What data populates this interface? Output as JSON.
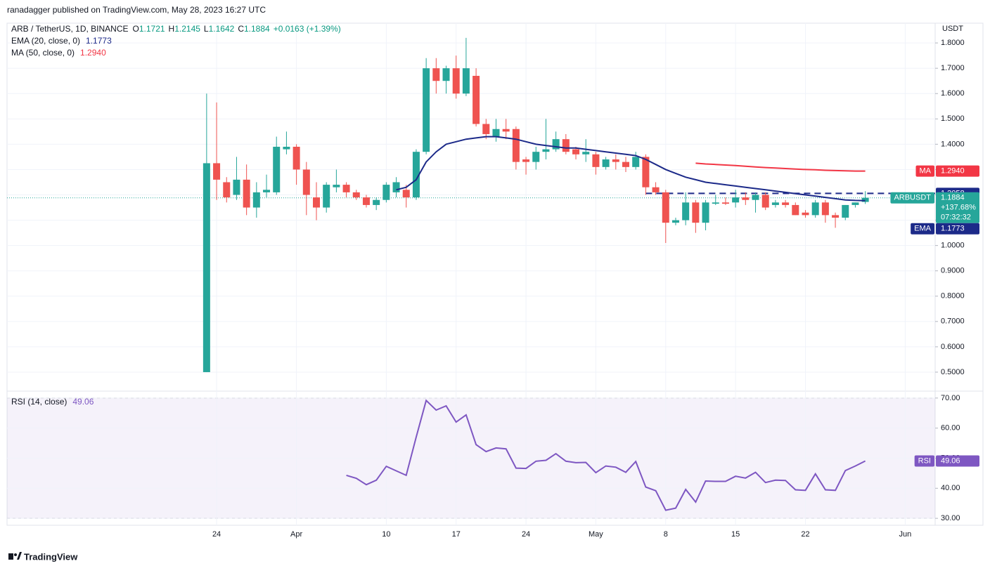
{
  "header": "ranadagger published on TradingView.com, May 28, 2023 16:27 UTC",
  "footer": "TradingView",
  "chart_data": [
    {
      "type": "candlestick",
      "title": "ARB / TetherUS, 1D, BINANCE",
      "ohlc": [
        {
          "key": "O",
          "text": "1.1721"
        },
        {
          "key": "H",
          "text": "1.2145"
        },
        {
          "key": "L",
          "text": "1.1642"
        },
        {
          "key": "C",
          "text": "1.1884"
        }
      ],
      "change": "+0.0163 (+1.39%)",
      "unit": "USDT",
      "categories": [
        "Mar 23",
        "Mar 24",
        "Mar 25",
        "Mar 26",
        "Mar 27",
        "Mar 28",
        "Mar 29",
        "Mar 30",
        "Mar 31",
        "Apr 1",
        "Apr 2",
        "Apr 3",
        "Apr 4",
        "Apr 5",
        "Apr 6",
        "Apr 7",
        "Apr 8",
        "Apr 9",
        "Apr 10",
        "Apr 11",
        "Apr 12",
        "Apr 13",
        "Apr 14",
        "Apr 15",
        "Apr 16",
        "Apr 17",
        "Apr 18",
        "Apr 19",
        "Apr 20",
        "Apr 21",
        "Apr 22",
        "Apr 23",
        "Apr 24",
        "Apr 25",
        "Apr 26",
        "Apr 27",
        "Apr 28",
        "Apr 29",
        "Apr 30",
        "May 1",
        "May 2",
        "May 3",
        "May 4",
        "May 5",
        "May 6",
        "May 7",
        "May 8",
        "May 9",
        "May 10",
        "May 11",
        "May 12",
        "May 13",
        "May 14",
        "May 15",
        "May 16",
        "May 17",
        "May 18",
        "May 19",
        "May 20",
        "May 21",
        "May 22",
        "May 23",
        "May 24",
        "May 25",
        "May 26",
        "May 27",
        "May 28"
      ],
      "series": [
        {
          "name": "ARBUSDT",
          "up_color": "#26a69a",
          "down_color": "#ef5350",
          "open": [
            0.5,
            1.325,
            1.25,
            1.2,
            1.26,
            1.15,
            1.21,
            1.21,
            1.38,
            1.39,
            1.3,
            1.19,
            1.15,
            1.23,
            1.24,
            1.21,
            1.19,
            1.16,
            1.18,
            1.21,
            1.22,
            1.19,
            1.37,
            1.7,
            1.65,
            1.7,
            1.6,
            1.67,
            1.48,
            1.43,
            1.46,
            1.46,
            1.34,
            1.33,
            1.37,
            1.38,
            1.42,
            1.38,
            1.36,
            1.36,
            1.31,
            1.34,
            1.33,
            1.31,
            1.35,
            1.23,
            1.21,
            1.09,
            1.1,
            1.17,
            1.09,
            1.165,
            1.17,
            1.17,
            1.19,
            1.18,
            1.2,
            1.16,
            1.17,
            1.16,
            1.13,
            1.12,
            1.17,
            1.12,
            1.11,
            1.16,
            1.1721
          ],
          "high": [
            1.6,
            1.565,
            1.27,
            1.35,
            1.32,
            1.25,
            1.28,
            1.43,
            1.45,
            1.4,
            1.33,
            1.25,
            1.25,
            1.3,
            1.25,
            1.22,
            1.2,
            1.19,
            1.25,
            1.27,
            1.24,
            1.38,
            1.74,
            1.74,
            1.71,
            1.75,
            1.82,
            1.7,
            1.5,
            1.5,
            1.5,
            1.47,
            1.35,
            1.39,
            1.5,
            1.45,
            1.44,
            1.39,
            1.42,
            1.37,
            1.35,
            1.36,
            1.35,
            1.37,
            1.36,
            1.25,
            1.22,
            1.11,
            1.21,
            1.18,
            1.18,
            1.2,
            1.19,
            1.22,
            1.21,
            1.21,
            1.21,
            1.18,
            1.18,
            1.17,
            1.14,
            1.18,
            1.18,
            1.13,
            1.16,
            1.17,
            1.2145
          ],
          "low": [
            0.5,
            1.18,
            1.17,
            1.18,
            1.12,
            1.11,
            1.19,
            1.2,
            1.36,
            1.24,
            1.12,
            1.1,
            1.13,
            1.21,
            1.19,
            1.18,
            1.15,
            1.14,
            1.17,
            1.19,
            1.15,
            1.18,
            1.36,
            1.6,
            1.6,
            1.58,
            1.59,
            1.47,
            1.42,
            1.41,
            1.42,
            1.3,
            1.28,
            1.3,
            1.34,
            1.37,
            1.36,
            1.34,
            1.33,
            1.28,
            1.3,
            1.3,
            1.29,
            1.3,
            1.2,
            1.2,
            1.01,
            1.08,
            1.08,
            1.05,
            1.06,
            1.16,
            1.16,
            1.15,
            1.16,
            1.13,
            1.14,
            1.15,
            1.15,
            1.12,
            1.11,
            1.11,
            1.09,
            1.07,
            1.1,
            1.15,
            1.1642
          ],
          "close": [
            1.325,
            1.26,
            1.19,
            1.26,
            1.15,
            1.21,
            1.22,
            1.39,
            1.39,
            1.3,
            1.2,
            1.15,
            1.24,
            1.24,
            1.21,
            1.19,
            1.16,
            1.18,
            1.24,
            1.25,
            1.19,
            1.37,
            1.7,
            1.65,
            1.7,
            1.6,
            1.7,
            1.48,
            1.44,
            1.46,
            1.45,
            1.33,
            1.33,
            1.37,
            1.38,
            1.42,
            1.37,
            1.36,
            1.37,
            1.31,
            1.34,
            1.33,
            1.31,
            1.35,
            1.23,
            1.21,
            1.09,
            1.1,
            1.17,
            1.09,
            1.17,
            1.17,
            1.165,
            1.19,
            1.18,
            1.2,
            1.15,
            1.17,
            1.16,
            1.12,
            1.12,
            1.17,
            1.12,
            1.11,
            1.16,
            1.17,
            1.1884
          ]
        },
        {
          "name": "EMA (20, close, 0)",
          "tag": "EMA",
          "color": "#1c2a89",
          "last_label": "1.1773",
          "values": [
            null,
            null,
            null,
            null,
            null,
            null,
            null,
            null,
            null,
            null,
            null,
            null,
            null,
            null,
            null,
            null,
            null,
            null,
            null,
            1.22,
            1.23,
            1.26,
            1.33,
            1.37,
            1.4,
            1.41,
            1.42,
            1.425,
            1.43,
            1.43,
            1.425,
            1.42,
            1.41,
            1.4,
            1.395,
            1.39,
            1.385,
            1.385,
            1.38,
            1.375,
            1.37,
            1.365,
            1.36,
            1.355,
            1.34,
            1.32,
            1.3,
            1.285,
            1.27,
            1.26,
            1.25,
            1.245,
            1.24,
            1.235,
            1.23,
            1.225,
            1.22,
            1.215,
            1.21,
            1.205,
            1.2,
            1.195,
            1.19,
            1.185,
            1.18,
            1.178,
            1.1773
          ]
        },
        {
          "name": "MA (50, close, 0)",
          "tag": "MA",
          "color": "#f23645",
          "last_label": "1.2940",
          "values": [
            null,
            null,
            null,
            null,
            null,
            null,
            null,
            null,
            null,
            null,
            null,
            null,
            null,
            null,
            null,
            null,
            null,
            null,
            null,
            null,
            null,
            null,
            null,
            null,
            null,
            null,
            null,
            null,
            null,
            null,
            null,
            null,
            null,
            null,
            null,
            null,
            null,
            null,
            null,
            null,
            null,
            null,
            null,
            null,
            null,
            null,
            null,
            null,
            null,
            1.325,
            1.322,
            1.32,
            1.318,
            1.316,
            1.313,
            1.31,
            1.308,
            1.306,
            1.304,
            1.302,
            1.3,
            1.299,
            1.297,
            1.296,
            1.295,
            1.294,
            1.294
          ]
        }
      ],
      "last_price": {
        "value": 1.1884,
        "label": "1.1884",
        "change": "+137.68%",
        "countdown": "07:32:32",
        "color": "#26a69a"
      },
      "levels": [
        {
          "value": 1.2058,
          "label": "1.2058",
          "start": "May 6",
          "color": "#1c2a89"
        }
      ],
      "xlim": [
        "Mar 3",
        "Jun 4"
      ],
      "xticks": [
        {
          "value": "Mar 24",
          "label": "24"
        },
        {
          "value": "Apr 1",
          "label": "Apr"
        },
        {
          "value": "Apr 10",
          "label": "10"
        },
        {
          "value": "Apr 17",
          "label": "17"
        },
        {
          "value": "Apr 24",
          "label": "24"
        },
        {
          "value": "May 1",
          "label": "May"
        },
        {
          "value": "May 8",
          "label": "8"
        },
        {
          "value": "May 15",
          "label": "15"
        },
        {
          "value": "May 22",
          "label": "22"
        },
        {
          "value": "Jun 1",
          "label": "Jun"
        }
      ],
      "ylim": [
        0.425,
        1.878
      ],
      "yticks": [
        {
          "value": 0.5,
          "label": "0.5000"
        },
        {
          "value": 0.6,
          "label": "0.6000"
        },
        {
          "value": 0.7,
          "label": "0.7000"
        },
        {
          "value": 0.8,
          "label": "0.8000"
        },
        {
          "value": 0.9,
          "label": "0.9000"
        },
        {
          "value": 1.0,
          "label": "1.0000"
        },
        {
          "value": 1.1,
          "label": "1.1000"
        },
        {
          "value": 1.2,
          "label": "1.2000"
        },
        {
          "value": 1.3,
          "label": "1.3000"
        },
        {
          "value": 1.4,
          "label": "1.4000"
        },
        {
          "value": 1.5,
          "label": "1.5000"
        },
        {
          "value": 1.6,
          "label": "1.6000"
        },
        {
          "value": 1.7,
          "label": "1.7000"
        },
        {
          "value": 1.8,
          "label": "1.8000"
        }
      ],
      "grid": true
    },
    {
      "type": "line",
      "series": [
        {
          "name": "RSI (14, close)",
          "tag": "RSI",
          "color": "#7e57c2",
          "last_label": "49.06",
          "values": [
            null,
            null,
            null,
            null,
            null,
            null,
            null,
            null,
            null,
            null,
            null,
            null,
            null,
            null,
            44.3,
            43.3,
            41.2,
            42.7,
            47.3,
            45.8,
            44.3,
            57,
            69.2,
            66,
            67.4,
            62,
            64.4,
            54.5,
            52.2,
            53.4,
            53.1,
            46.7,
            46.6,
            49,
            49.3,
            51.5,
            49,
            48.5,
            48.6,
            45.2,
            47.4,
            47,
            45.3,
            48.9,
            40.4,
            39.2,
            32.7,
            33.4,
            39.6,
            35.4,
            42.4,
            42.3,
            42.3,
            44,
            43.4,
            45.3,
            41.9,
            42.7,
            42.6,
            39.5,
            39.3,
            44.8,
            39.5,
            39.3,
            45.9,
            47.4,
            49.06
          ]
        }
      ],
      "band": [
        30,
        70
      ],
      "ylim": [
        27.7,
        72.3
      ],
      "yticks": [
        {
          "value": 30,
          "label": "30.00"
        },
        {
          "value": 40,
          "label": "40.00"
        },
        {
          "value": 50,
          "label": "50.00"
        },
        {
          "value": 60,
          "label": "60.00"
        },
        {
          "value": 70,
          "label": "70.00"
        }
      ],
      "grid": true
    }
  ]
}
